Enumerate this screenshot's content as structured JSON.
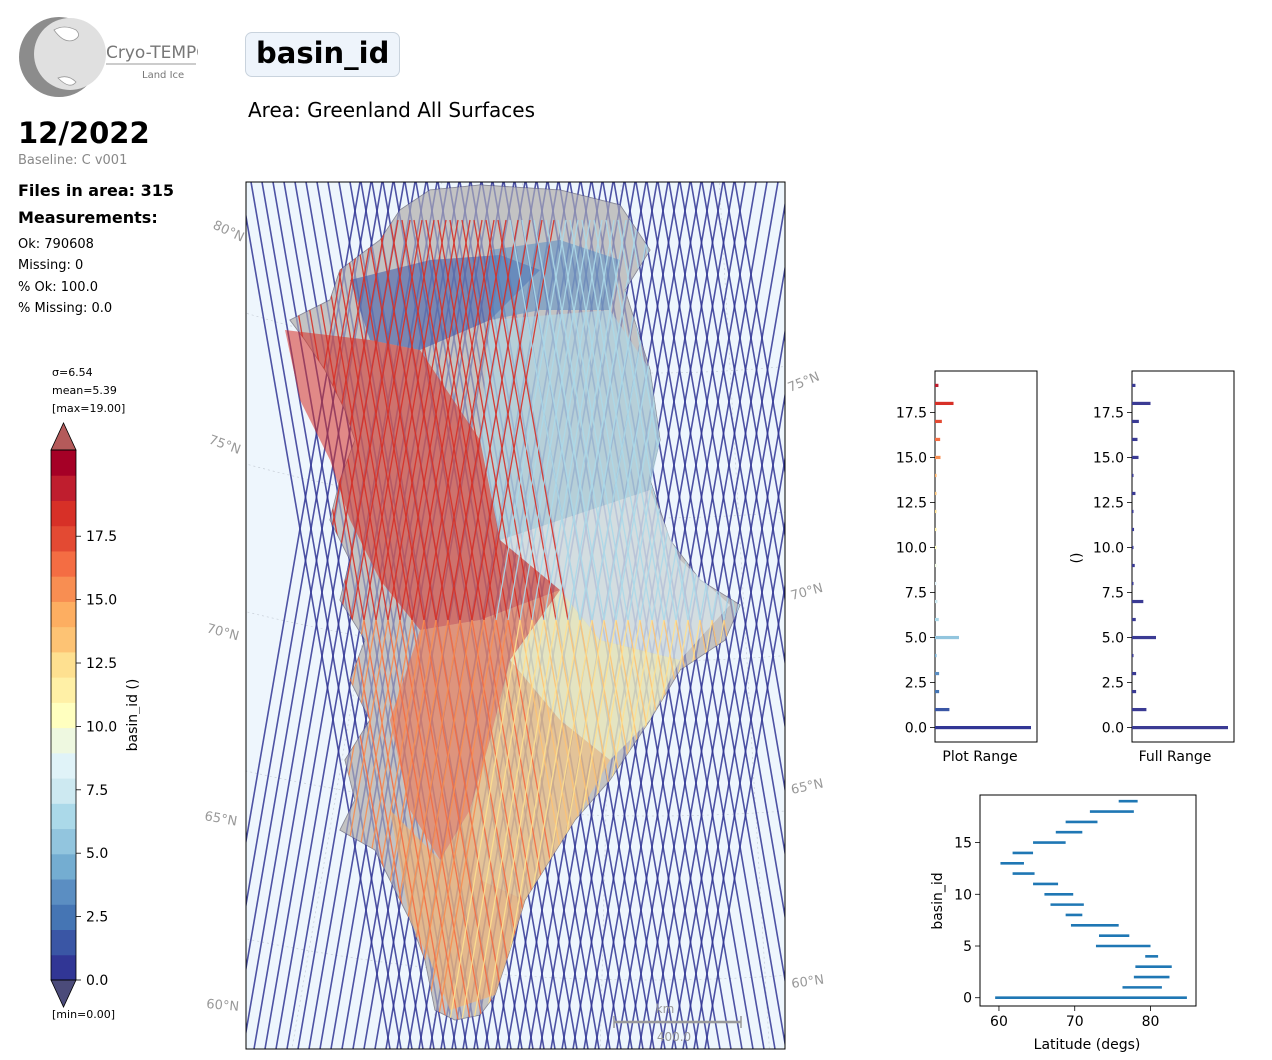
{
  "logo": {
    "line1": "Cryo-TEMPO",
    "line2": "Land Ice"
  },
  "header": {
    "title": "basin_id",
    "area": "Area: Greenland All Surfaces"
  },
  "summary": {
    "month": "12/2022",
    "baseline": "Baseline: C v001",
    "files": "Files in area: 315",
    "measurements_heading": "Measurements:",
    "stats": [
      "Ok: 790608",
      "Missing: 0",
      "% Ok: 100.0",
      "% Missing: 0.0"
    ]
  },
  "colorbar": {
    "sigma": "σ=6.54",
    "mean": "mean=5.39",
    "max": "[max=19.00]",
    "min": "[min=0.00]",
    "label": "basin_id ()",
    "ticks": [
      "0.0",
      "2.5",
      "5.0",
      "7.5",
      "10.0",
      "12.5",
      "15.0",
      "17.5"
    ],
    "colors": [
      "#313695",
      "#3a56a5",
      "#4575b4",
      "#5b8ec2",
      "#74add1",
      "#92c5de",
      "#abd9e9",
      "#cde9f1",
      "#e0f3f8",
      "#eef8e0",
      "#ffffbf",
      "#fff0a6",
      "#fee090",
      "#fdc374",
      "#fdae61",
      "#f88e52",
      "#f46d43",
      "#e34a33",
      "#d73027",
      "#bf1e2e",
      "#a50026"
    ],
    "under_color": "#4b4b7a",
    "over_color": "#b45a5a"
  },
  "map": {
    "lat_labels_left": [
      "80°N",
      "75°N",
      "70°N",
      "65°N",
      "60°N"
    ],
    "lat_labels_right": [
      "75°N",
      "70°N",
      "65°N",
      "60°N"
    ],
    "scalebar_unit": "km",
    "scalebar_value": "400.0"
  },
  "chart_data": [
    {
      "type": "bar",
      "orientation": "horizontal",
      "title": "",
      "xlabel": "Plot Range",
      "ylabel": "",
      "ylim": [
        -0.8,
        19.8
      ],
      "yticks": [
        "0.0",
        "2.5",
        "5.0",
        "7.5",
        "10.0",
        "12.5",
        "15.0",
        "17.5"
      ],
      "categories": [
        0,
        1,
        2,
        3,
        4,
        5,
        6,
        7,
        8,
        9,
        10,
        11,
        12,
        13,
        14,
        15,
        16,
        17,
        18,
        19
      ],
      "values": [
        28000,
        4200,
        1200,
        1200,
        300,
        7000,
        1100,
        700,
        200,
        100,
        80,
        80,
        80,
        80,
        200,
        1600,
        1500,
        2000,
        5400,
        1000
      ]
    },
    {
      "type": "bar",
      "orientation": "horizontal",
      "title": "",
      "xlabel": "Full Range",
      "ylabel": "()",
      "ylim": [
        -0.8,
        19.8
      ],
      "yticks": [
        "0.0",
        "2.5",
        "5.0",
        "7.5",
        "10.0",
        "12.5",
        "15.0",
        "17.5"
      ],
      "categories": [
        0,
        1,
        2,
        3,
        4,
        5,
        6,
        7,
        8,
        9,
        10,
        11,
        12,
        13,
        14,
        15,
        16,
        17,
        18,
        19
      ],
      "values": [
        28000,
        4200,
        1200,
        1200,
        300,
        7000,
        1100,
        3300,
        200,
        800,
        300,
        600,
        200,
        1000,
        300,
        1900,
        1600,
        2000,
        5400,
        1000
      ]
    },
    {
      "type": "range",
      "title": "",
      "xlabel": "Latitude (degs)",
      "ylabel": "basin_id",
      "xlim": [
        57.5,
        86
      ],
      "ylim": [
        -0.8,
        19.6
      ],
      "xticks": [
        "60",
        "70",
        "80"
      ],
      "yticks": [
        "0",
        "5",
        "10",
        "15"
      ],
      "series": [
        {
          "ranges": [
            {
              "y": 0,
              "x": [
                59.5,
                84.8
              ]
            },
            {
              "y": 1,
              "x": [
                76.3,
                81.5
              ]
            },
            {
              "y": 2,
              "x": [
                77.8,
                82.5
              ]
            },
            {
              "y": 3,
              "x": [
                78.0,
                82.8
              ]
            },
            {
              "y": 4,
              "x": [
                79.3,
                81.0
              ]
            },
            {
              "y": 5,
              "x": [
                72.8,
                80.0
              ]
            },
            {
              "y": 6,
              "x": [
                73.2,
                77.2
              ]
            },
            {
              "y": 7,
              "x": [
                69.5,
                75.8
              ]
            },
            {
              "y": 8,
              "x": [
                68.8,
                71.0
              ]
            },
            {
              "y": 9,
              "x": [
                66.8,
                71.2
              ]
            },
            {
              "y": 10,
              "x": [
                66.0,
                69.8
              ]
            },
            {
              "y": 11,
              "x": [
                64.5,
                67.8
              ]
            },
            {
              "y": 12,
              "x": [
                61.8,
                64.7
              ]
            },
            {
              "y": 13,
              "x": [
                60.2,
                63.3
              ]
            },
            {
              "y": 14,
              "x": [
                61.8,
                64.5
              ]
            },
            {
              "y": 15,
              "x": [
                64.5,
                68.8
              ]
            },
            {
              "y": 16,
              "x": [
                67.5,
                71.0
              ]
            },
            {
              "y": 17,
              "x": [
                68.8,
                73.0
              ]
            },
            {
              "y": 18,
              "x": [
                72.0,
                77.8
              ]
            },
            {
              "y": 19,
              "x": [
                75.8,
                78.3
              ]
            }
          ]
        }
      ]
    }
  ]
}
